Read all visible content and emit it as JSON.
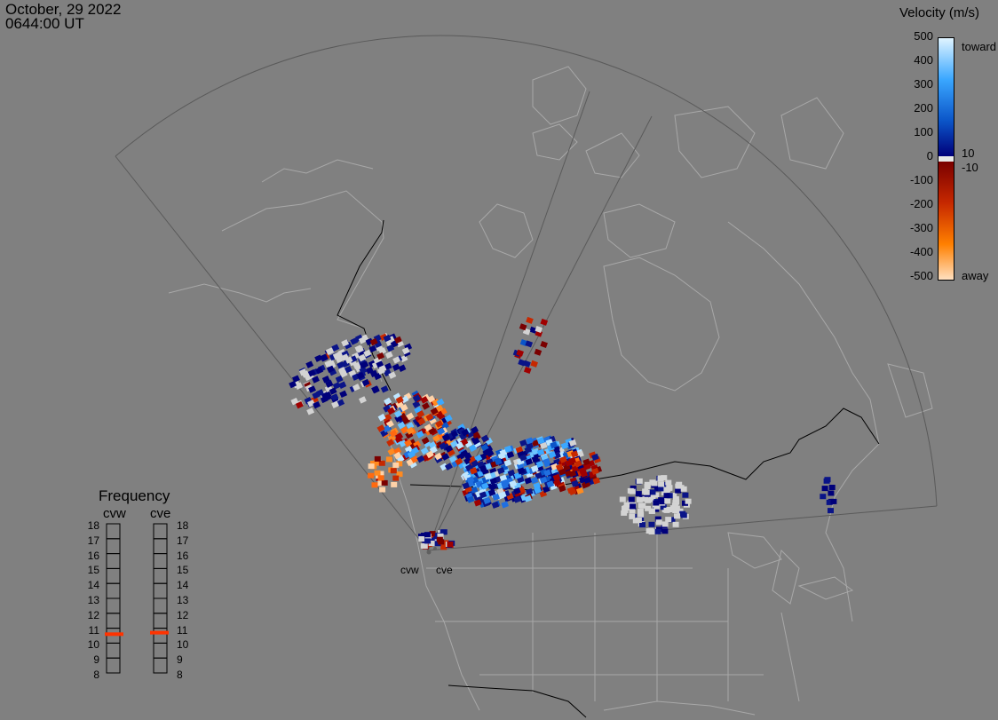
{
  "timestamp": {
    "date": "October, 29 2022",
    "time": "0644:00 UT"
  },
  "colorbar": {
    "title": "Velocity (m/s)",
    "ticks": [
      "500",
      "400",
      "300",
      "200",
      "100",
      "0",
      "-100",
      "-200",
      "-300",
      "-400",
      "-500"
    ],
    "inner_labels": [
      "10",
      "-10"
    ],
    "toward_label": "toward",
    "away_label": "away",
    "range": [
      -500,
      500
    ]
  },
  "frequency_panel": {
    "title": "Frequency",
    "radars": [
      {
        "name": "cvw",
        "value_mhz": 10.6
      },
      {
        "name": "cve",
        "value_mhz": 10.7
      }
    ],
    "scale": [
      "18",
      "17",
      "16",
      "15",
      "14",
      "13",
      "12",
      "11",
      "10",
      "9",
      "8"
    ],
    "indicator_color": "#ff3300"
  },
  "radar_labels": [
    "cvw",
    "cve"
  ],
  "colors": {
    "background": "#808080",
    "coastline": "#a8a8a8",
    "fov_line": "#5a5a5a",
    "border": "#000000",
    "low_velocity": "#d3d3d3"
  }
}
